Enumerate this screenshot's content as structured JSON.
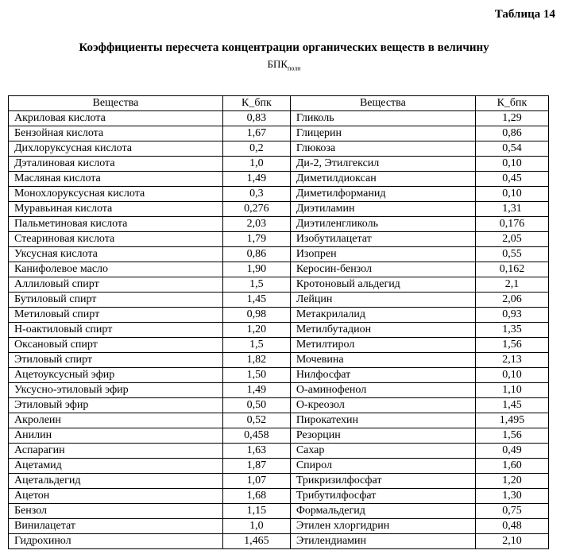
{
  "document": {
    "table_number": "Таблица 14",
    "title": "Коэффициенты пересчета концентрации органических веществ в величину",
    "subtitle_main": "БПК",
    "subtitle_sub": "полн"
  },
  "table": {
    "headers": [
      "Вещества",
      "К_бпк",
      "Вещества",
      "К_бпк"
    ],
    "rows": [
      [
        "Акриловая кислота",
        "0,83",
        "Гликоль",
        "1,29"
      ],
      [
        "Бензойная кислота",
        "1,67",
        "Глицерин",
        "0,86"
      ],
      [
        "Дихлоруксусная кислота",
        "0,2",
        "Глюкоза",
        "0,54"
      ],
      [
        "Дэталиновая кислота",
        "1,0",
        "Ди-2, Этилгексил",
        "0,10"
      ],
      [
        "Масляная кислота",
        "1,49",
        "Диметилдиоксан",
        "0,45"
      ],
      [
        "Монохлоруксусная кислота",
        "0,3",
        "Диметилформанид",
        "0,10"
      ],
      [
        "Муравьиная кислота",
        "0,276",
        "Диэтиламин",
        "1,31"
      ],
      [
        "Пальметиновая кислота",
        "2,03",
        "Диэтиленгликоль",
        "0,176"
      ],
      [
        "Стеариновая кислота",
        "1,79",
        "Изобутилацетат",
        "2,05"
      ],
      [
        "Уксусная кислота",
        "0,86",
        "Изопрен",
        "0,55"
      ],
      [
        "Канифолевое масло",
        "1,90",
        "Керосин-бензол",
        "0,162"
      ],
      [
        "Аллиловый спирт",
        "1,5",
        "Кротоновый альдегид",
        "2,1"
      ],
      [
        "Бутиловый спирт",
        "1,45",
        "Лейцин",
        "2,06"
      ],
      [
        "Метиловый спирт",
        "0,98",
        "Метакрилалид",
        "0,93"
      ],
      [
        "Н-оактиловый спирт",
        "1,20",
        "Метилбутадион",
        "1,35"
      ],
      [
        "Оксановый спирт",
        "1,5",
        "Метилтирол",
        "1,56"
      ],
      [
        "Этиловый спирт",
        "1,82",
        "Мочевина",
        "2,13"
      ],
      [
        "Ацетоуксусный эфир",
        "1,50",
        "Нилфосфат",
        "0,10"
      ],
      [
        "Уксусно-этиловый эфир",
        "1,49",
        "О-аминофенол",
        "1,10"
      ],
      [
        "Этиловый эфир",
        "0,50",
        "О-креозол",
        "1,45"
      ],
      [
        "Акролеин",
        "0,52",
        "Пирокатехин",
        "1,495"
      ],
      [
        "Анилин",
        "0,458",
        "Резорцин",
        "1,56"
      ],
      [
        "Аспарагин",
        "1,63",
        "Сахар",
        "0,49"
      ],
      [
        "Ацетамид",
        "1,87",
        "Спирол",
        "1,60"
      ],
      [
        "Ацетальдегид",
        "1,07",
        "Трикризилфосфат",
        "1,20"
      ],
      [
        "Ацетон",
        "1,68",
        "Трибутилфосфат",
        "1,30"
      ],
      [
        "Бензол",
        "1,15",
        "Формальдегид",
        "0,75"
      ],
      [
        "Винилацетат",
        "1,0",
        "Этилен хлоргидрин",
        "0,48"
      ],
      [
        "Гидрохинол",
        "1,465",
        "Этилендиамин",
        "2,10"
      ]
    ]
  }
}
